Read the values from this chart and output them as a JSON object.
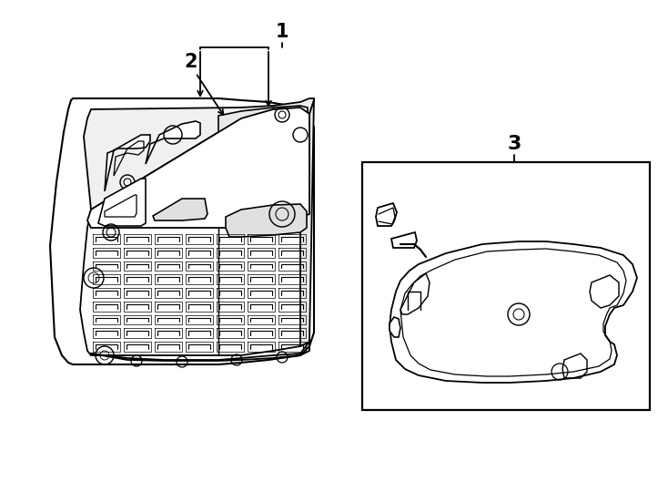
{
  "background_color": "#ffffff",
  "line_color": "#000000",
  "line_width": 1.3,
  "label_fontsize": 14,
  "figsize": [
    7.34,
    5.4
  ],
  "dpi": 100
}
